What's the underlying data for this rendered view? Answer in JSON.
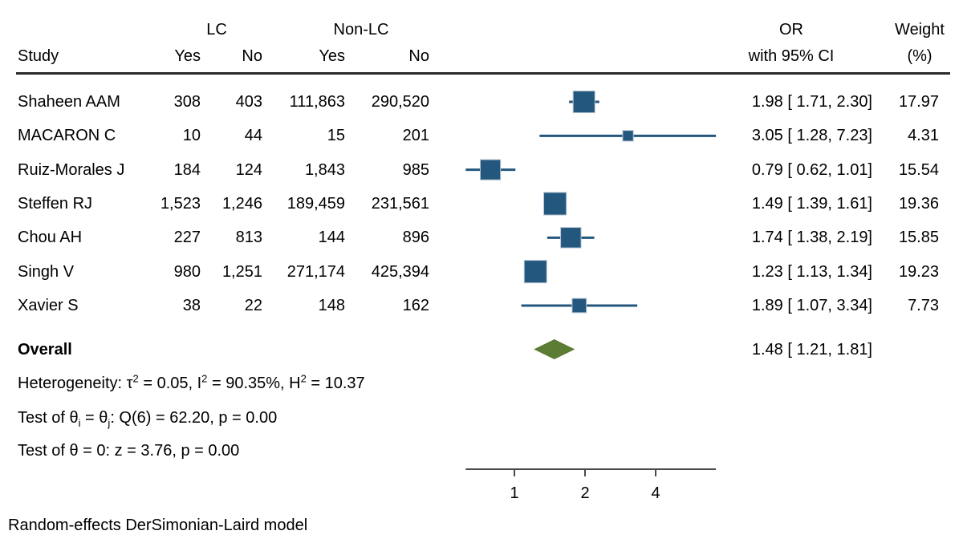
{
  "header": {
    "group1": "LC",
    "group2": "Non-LC",
    "study": "Study",
    "yes1": "Yes",
    "no1": "No",
    "yes2": "Yes",
    "no2": "No",
    "or_line1": "OR",
    "or_line2": "with 95% CI",
    "weight_line1": "Weight",
    "weight_line2": "(%)"
  },
  "rows": [
    {
      "study": "Shaheen AAM",
      "lc_yes": "308",
      "lc_no": "403",
      "nlc_yes": "111,863",
      "nlc_no": "290,520",
      "or_ci": "1.98 [ 1.71, 2.30]",
      "weight": "17.97"
    },
    {
      "study": "MACARON C",
      "lc_yes": "10",
      "lc_no": "44",
      "nlc_yes": "15",
      "nlc_no": "201",
      "or_ci": "3.05 [ 1.28, 7.23]",
      "weight": "4.31"
    },
    {
      "study": "Ruiz-Morales J",
      "lc_yes": "184",
      "lc_no": "124",
      "nlc_yes": "1,843",
      "nlc_no": "985",
      "or_ci": "0.79 [ 0.62, 1.01]",
      "weight": "15.54"
    },
    {
      "study": "Steffen RJ",
      "lc_yes": "1,523",
      "lc_no": "1,246",
      "nlc_yes": "189,459",
      "nlc_no": "231,561",
      "or_ci": "1.49 [ 1.39, 1.61]",
      "weight": "19.36"
    },
    {
      "study": "Chou AH",
      "lc_yes": "227",
      "lc_no": "813",
      "nlc_yes": "144",
      "nlc_no": "896",
      "or_ci": "1.74 [ 1.38, 2.19]",
      "weight": "15.85"
    },
    {
      "study": "Singh V",
      "lc_yes": "980",
      "lc_no": "1,251",
      "nlc_yes": "271,174",
      "nlc_no": "425,394",
      "or_ci": "1.23 [ 1.13, 1.34]",
      "weight": "19.23"
    },
    {
      "study": "Xavier S",
      "lc_yes": "38",
      "lc_no": "22",
      "nlc_yes": "148",
      "nlc_no": "162",
      "or_ci": "1.89 [ 1.07, 3.34]",
      "weight": "7.73"
    }
  ],
  "overall": {
    "label": "Overall",
    "or_ci": "1.48 [ 1.21, 1.81]"
  },
  "stats": {
    "het": {
      "p1": "Heterogeneity: τ",
      "s1": "2",
      "p2": " = 0.05, I",
      "s2": "2",
      "p3": " = 90.35%, H",
      "s3": "2",
      "p4": " = 10.37"
    },
    "testq": {
      "p1": "Test of θ",
      "sub1": "i",
      "p2": " = θ",
      "sub2": "j",
      "p3": ": Q(6) = 62.20, p = 0.00"
    },
    "testz": "Test of θ = 0: z = 3.76, p = 0.00"
  },
  "footer": "Random-effects DerSimonian-Laird model",
  "chart_data": {
    "type": "forest",
    "x_scale": "log2",
    "axis_ticks": [
      1,
      2,
      4
    ],
    "axis_range": [
      0.62,
      7.23
    ],
    "studies": [
      {
        "name": "Shaheen AAM",
        "or": 1.98,
        "ci_low": 1.71,
        "ci_high": 2.3,
        "weight": 17.97
      },
      {
        "name": "MACARON C",
        "or": 3.05,
        "ci_low": 1.28,
        "ci_high": 7.23,
        "weight": 4.31
      },
      {
        "name": "Ruiz-Morales J",
        "or": 0.79,
        "ci_low": 0.62,
        "ci_high": 1.01,
        "weight": 15.54
      },
      {
        "name": "Steffen RJ",
        "or": 1.49,
        "ci_low": 1.39,
        "ci_high": 1.61,
        "weight": 19.36
      },
      {
        "name": "Chou AH",
        "or": 1.74,
        "ci_low": 1.38,
        "ci_high": 2.19,
        "weight": 15.85
      },
      {
        "name": "Singh V",
        "or": 1.23,
        "ci_low": 1.13,
        "ci_high": 1.34,
        "weight": 19.23
      },
      {
        "name": "Xavier S",
        "or": 1.89,
        "ci_low": 1.07,
        "ci_high": 3.34,
        "weight": 7.73
      }
    ],
    "overall": {
      "or": 1.48,
      "ci_low": 1.21,
      "ci_high": 1.81
    },
    "marker_color": "#24577d",
    "marker_edge_color": "#b6c6d4",
    "diamond_color": "#5d7c33",
    "axis_color": "#4a4a4a",
    "model_note": "Random-effects DerSimonian-Laird model"
  }
}
